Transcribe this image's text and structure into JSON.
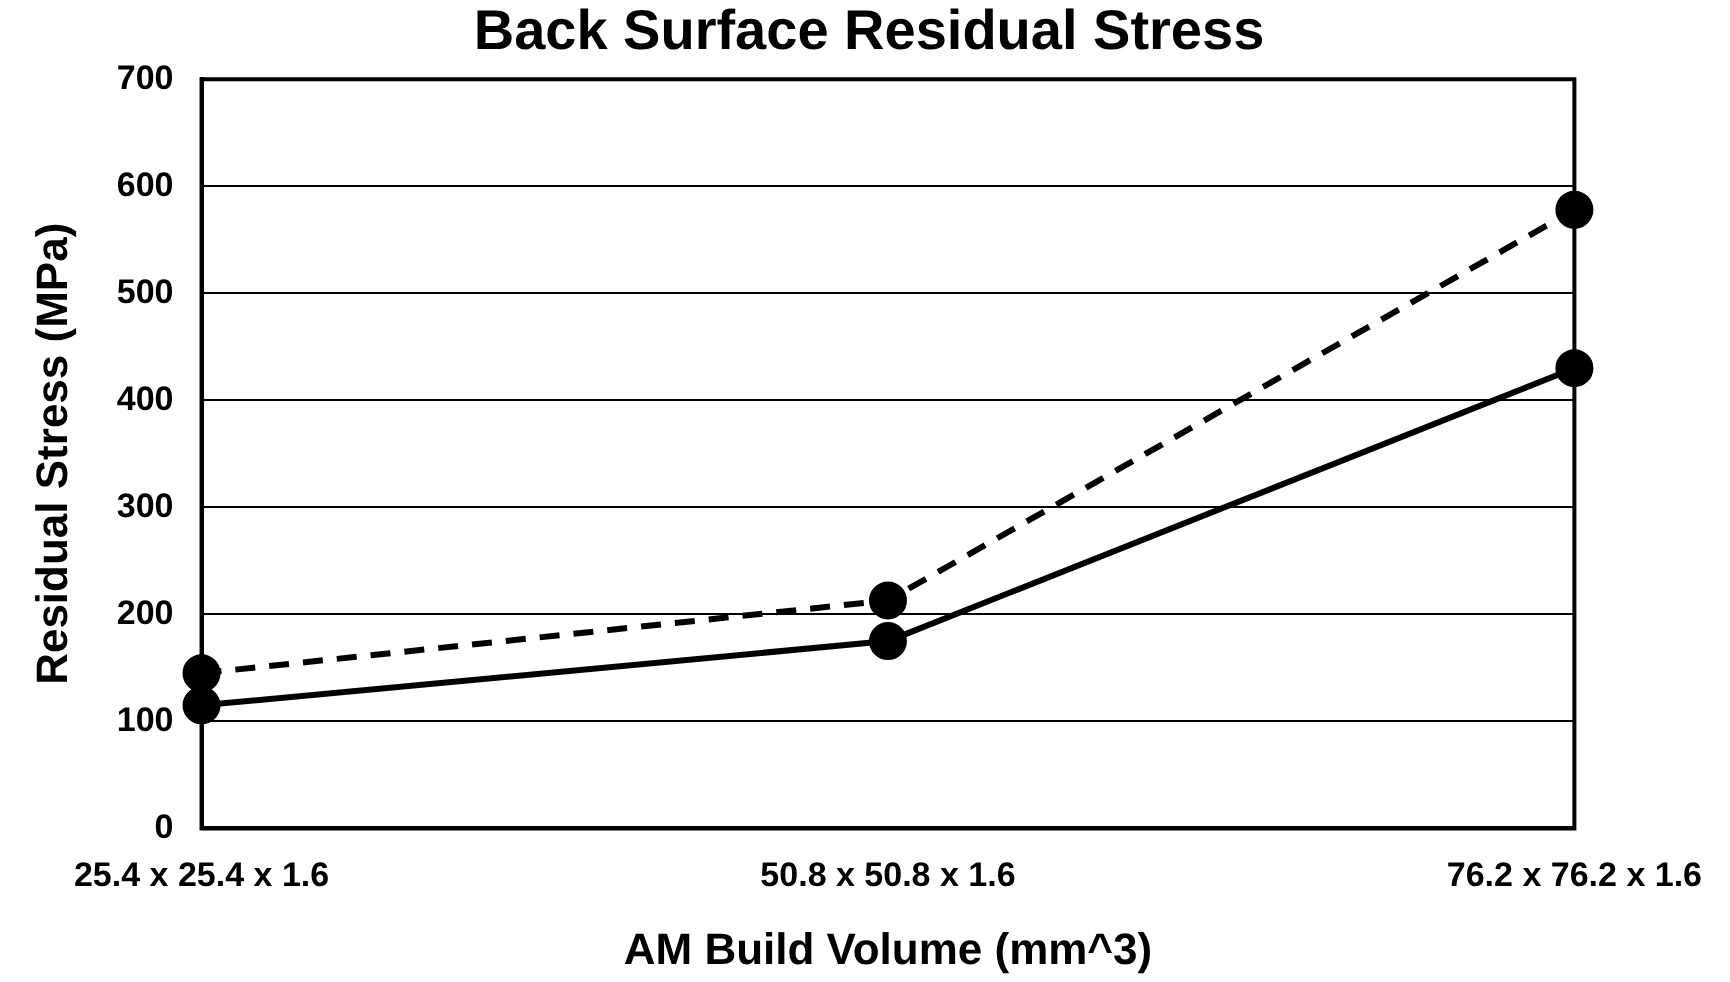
{
  "chart_data": {
    "type": "line",
    "title": "Back Surface Residual Stress",
    "xlabel": "AM Build Volume (mm^3)",
    "ylabel": "Residual Stress (MPa)",
    "categories": [
      "25.4 x 25.4 x 1.6",
      "50.8 x 50.8 x 1.6",
      "76.2 x 76.2 x 1.6"
    ],
    "series": [
      {
        "color": "#000000",
        "values": [
          145,
          213,
          578
        ],
        "line_style": "dashed"
      },
      {
        "color": "#000000",
        "values": [
          115,
          175,
          430
        ],
        "line_style": "solid"
      }
    ],
    "ylim": [
      0,
      700
    ],
    "yticks": [
      0,
      100,
      200,
      300,
      400,
      500,
      600,
      700
    ],
    "grid": "y",
    "legend": false,
    "marker": "circle"
  }
}
